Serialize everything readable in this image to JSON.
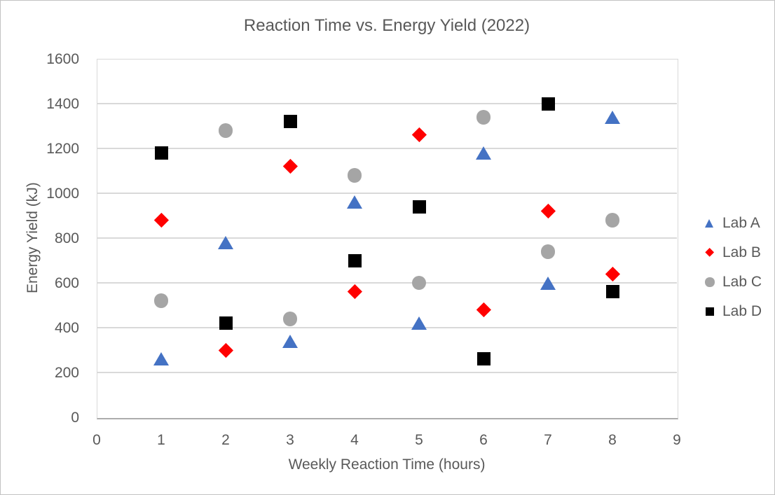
{
  "chart_data": {
    "type": "scatter",
    "title": "Reaction Time vs. Energy Yield (2022)",
    "xlabel": "Weekly Reaction Time (hours)",
    "ylabel": "Energy Yield (kJ)",
    "x": [
      1,
      2,
      3,
      4,
      5,
      6,
      7,
      8
    ],
    "series": [
      {
        "name": "Lab A",
        "marker": "triangle",
        "color": "#4472C4",
        "values": [
          260,
          780,
          340,
          960,
          420,
          1180,
          600,
          1340
        ]
      },
      {
        "name": "Lab B",
        "marker": "diamond",
        "color": "#FF0000",
        "values": [
          880,
          300,
          1120,
          560,
          1260,
          480,
          920,
          640
        ]
      },
      {
        "name": "Lab C",
        "marker": "circle",
        "color": "#A5A5A5",
        "values": [
          520,
          1280,
          440,
          1080,
          600,
          1340,
          740,
          880
        ]
      },
      {
        "name": "Lab D",
        "marker": "square",
        "color": "#000000",
        "values": [
          1180,
          420,
          1320,
          700,
          940,
          260,
          1400,
          560
        ]
      }
    ],
    "xlim": [
      0,
      9
    ],
    "ylim": [
      0,
      1600
    ],
    "x_ticks": [
      0,
      1,
      2,
      3,
      4,
      5,
      6,
      7,
      8,
      9
    ],
    "y_ticks": [
      0,
      200,
      400,
      600,
      800,
      1000,
      1200,
      1400,
      1600
    ],
    "grid": "horizontal",
    "legend_position": "right",
    "text_color": "#595959",
    "grid_color": "#D9D9D9",
    "axis_line_color": "#ACACAC"
  }
}
